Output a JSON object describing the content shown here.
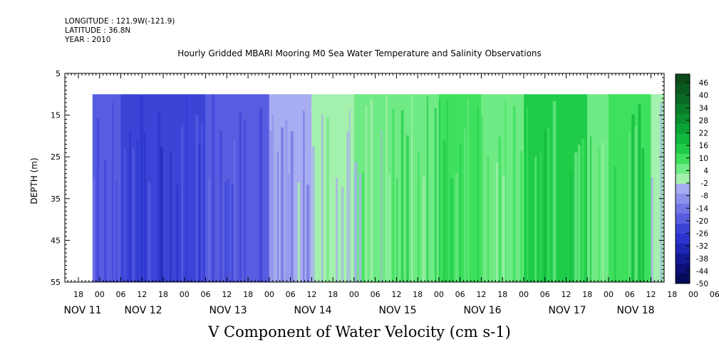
{
  "header": {
    "longitude": "LONGITUDE : 121.9W(-121.9)",
    "latitude": "LATITUDE : 36.8N",
    "year": "YEAR : 2010"
  },
  "chart_data": {
    "type": "heatmap",
    "title": "Hourly Gridded MBARI Mooring M0 Sea Water Temperature and Salinity Observations",
    "xlabel": "V Component of Water Velocity (cm s-1)",
    "ylabel": "DEPTH (m)",
    "ylim": [
      55,
      5
    ],
    "y_ticks": [
      5,
      15,
      25,
      35,
      45,
      55
    ],
    "x_hour_ticks": [
      "18",
      "00",
      "06",
      "12",
      "18",
      "00",
      "06",
      "12",
      "18",
      "00",
      "06",
      "12",
      "18",
      "00",
      "06",
      "12",
      "18",
      "00",
      "06",
      "12",
      "18",
      "00",
      "06",
      "12",
      "18",
      "00",
      "06",
      "12",
      "18",
      "00",
      "06",
      "12"
    ],
    "x_day_labels": [
      "NOV 11",
      "NOV 12",
      "NOV 13",
      "NOV 14",
      "NOV 15",
      "NOV 16",
      "NOV 17",
      "NOV 18"
    ],
    "data_depth_range": [
      10,
      55
    ],
    "colorbar_labels": [
      "46",
      "40",
      "34",
      "28",
      "22",
      "16",
      "10",
      "4",
      "-2",
      "-8",
      "-14",
      "-20",
      "-26",
      "-32",
      "-38",
      "-44",
      "-50"
    ],
    "colorbar_colors": [
      "#0c4a1a",
      "#0b5a1f",
      "#0a6a24",
      "#0a7d2a",
      "#0a9030",
      "#0aa436",
      "#10b83e",
      "#1fcc4a",
      "#3ee05e",
      "#6fea84",
      "#a4f0ad",
      "#a8acf0",
      "#8c92ec",
      "#7176e6",
      "#575de0",
      "#3c44d8",
      "#2a34cc",
      "#1e26b4",
      "#141a96",
      "#0c1078",
      "#060a5a"
    ],
    "values_by_period": [
      {
        "period": "NOV 10 22:00 - NOV 11 06:00",
        "value": -18
      },
      {
        "period": "NOV 11 06:00 - NOV 12 06:00",
        "value": -24
      },
      {
        "period": "NOV 12 06:00 - NOV 13 00:00",
        "value": -18
      },
      {
        "period": "NOV 13 00:00 - NOV 13 12:00",
        "value": -6
      },
      {
        "period": "NOV 13 12:00 - NOV 14 00:00",
        "value": 3
      },
      {
        "period": "NOV 14 00:00 - NOV 14 12:00",
        "value": 4
      },
      {
        "period": "NOV 14 12:00 - NOV 15 00:00",
        "value": 8
      },
      {
        "period": "NOV 15 00:00 - NOV 15 12:00",
        "value": 12
      },
      {
        "period": "NOV 15 12:00 - NOV 16 00:00",
        "value": 6
      },
      {
        "period": "NOV 16 00:00 - NOV 16 18:00",
        "value": 14
      },
      {
        "period": "NOV 16 18:00 - NOV 17 00:00",
        "value": 6
      },
      {
        "period": "NOV 17 00:00 - NOV 17 12:00",
        "value": 12
      },
      {
        "period": "NOV 17 12:00 - NOV 17 22:00",
        "value": 0
      },
      {
        "period": "NOV 17 22:00 - NOV 18 14:00",
        "value": 10
      }
    ]
  }
}
